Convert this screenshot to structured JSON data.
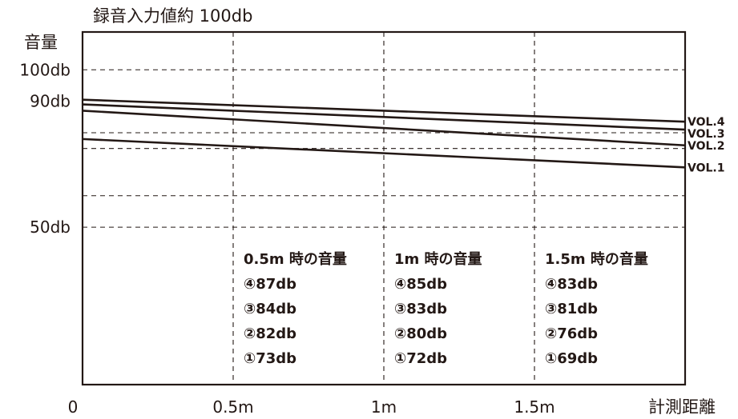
{
  "chart_data": {
    "type": "line",
    "title": "録音入力値約 100db",
    "ylabel": "音量",
    "xlabel": "計測距離",
    "y_tick_labels": [
      {
        "value": 100,
        "label": "100db"
      },
      {
        "value": 90,
        "label": "90db"
      },
      {
        "value": 50,
        "label": "50db"
      }
    ],
    "y_gridlines": [
      100,
      80,
      75,
      60,
      50
    ],
    "x_tick_labels": [
      {
        "value": 0,
        "label": "0"
      },
      {
        "value": 0.5,
        "label": "0.5m"
      },
      {
        "value": 1,
        "label": "1m"
      },
      {
        "value": 1.5,
        "label": "1.5m"
      }
    ],
    "xlim": [
      0,
      2
    ],
    "ylim": [
      0,
      112
    ],
    "grid": true,
    "series": [
      {
        "name": "VOL.4",
        "x": [
          0,
          2
        ],
        "y": [
          90.5,
          83.5
        ]
      },
      {
        "name": "VOL.3",
        "x": [
          0,
          2
        ],
        "y": [
          89,
          81
        ]
      },
      {
        "name": "VOL.2",
        "x": [
          0,
          2
        ],
        "y": [
          87,
          76
        ]
      },
      {
        "name": "VOL.1",
        "x": [
          0,
          2
        ],
        "y": [
          78,
          69
        ]
      }
    ],
    "annotations": [
      {
        "x_start": 0.5,
        "lines": [
          "0.5m 時の音量",
          "④87db",
          "③84db",
          "②82db",
          "①73db"
        ]
      },
      {
        "x_start": 1.0,
        "lines": [
          "1m 時の音量",
          "④85db",
          "③83db",
          "②80db",
          "①72db"
        ]
      },
      {
        "x_start": 1.5,
        "lines": [
          "1.5m 時の音量",
          "④83db",
          "③81db",
          "②76db",
          "①69db"
        ]
      }
    ]
  }
}
